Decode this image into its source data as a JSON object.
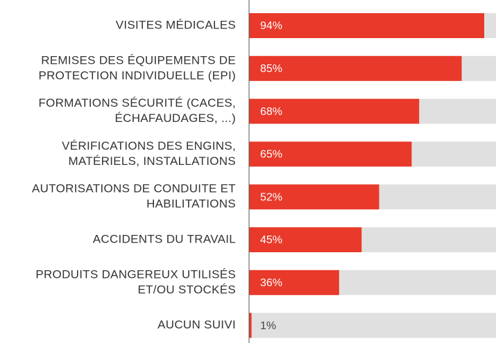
{
  "chart_data": {
    "type": "bar",
    "orientation": "horizontal",
    "categories": [
      [
        "VISITES MÉDICALES"
      ],
      [
        "REMISES DES ÉQUIPEMENTS DE",
        "PROTECTION INDIVIDUELLE (EPI)"
      ],
      [
        "FORMATIONS SÉCURITÉ (CACES,",
        "ÉCHAFAUDAGES, ...)"
      ],
      [
        "VÉRIFICATIONS DES ENGINS,",
        "MATÉRIELS, INSTALLATIONS"
      ],
      [
        "AUTORISATIONS DE CONDUITE ET",
        "HABILITATIONS"
      ],
      [
        "ACCIDENTS DU TRAVAIL"
      ],
      [
        "PRODUITS DANGEREUX UTILISÉS",
        "ET/OU STOCKÉS"
      ],
      [
        "AUCUN SUIVI"
      ]
    ],
    "values": [
      94,
      85,
      68,
      65,
      52,
      45,
      36,
      1
    ],
    "value_labels": [
      "94%",
      "85%",
      "68%",
      "65%",
      "52%",
      "45%",
      "36%",
      "1%"
    ],
    "color": "#e8392a",
    "track_color": "#e0e0e0",
    "xlim": [
      0,
      100
    ]
  }
}
